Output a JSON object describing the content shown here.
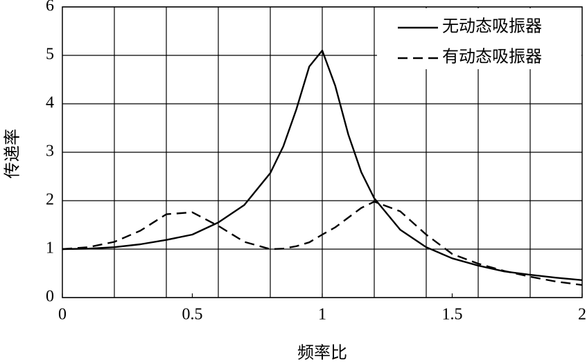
{
  "chart_data": {
    "type": "line",
    "xlabel": "频率比",
    "ylabel": "传递率",
    "x": [
      0,
      0.1,
      0.2,
      0.3,
      0.4,
      0.5,
      0.6,
      0.7,
      0.8,
      0.85,
      0.9,
      0.95,
      1.0,
      1.05,
      1.1,
      1.15,
      1.2,
      1.3,
      1.4,
      1.5,
      1.6,
      1.7,
      1.8,
      1.9,
      2.0
    ],
    "series": [
      {
        "name": "无动态吸振器",
        "color": "#000000",
        "dash": false,
        "values": [
          1.0,
          1.01,
          1.04,
          1.1,
          1.19,
          1.3,
          1.55,
          1.91,
          2.57,
          3.12,
          3.88,
          4.77,
          5.1,
          4.37,
          3.37,
          2.59,
          2.05,
          1.4,
          1.04,
          0.81,
          0.66,
          0.54,
          0.47,
          0.41,
          0.36
        ]
      },
      {
        "name": "有动态吸振器",
        "color": "#000000",
        "dash": true,
        "values": [
          1.0,
          1.04,
          1.15,
          1.38,
          1.72,
          1.76,
          1.48,
          1.15,
          1.0,
          1.01,
          1.06,
          1.14,
          1.3,
          1.45,
          1.65,
          1.85,
          1.98,
          1.78,
          1.3,
          0.9,
          0.7,
          0.55,
          0.43,
          0.33,
          0.26
        ]
      }
    ],
    "xlim": [
      0,
      2
    ],
    "ylim": [
      0,
      6
    ],
    "xticks": [
      0,
      0.5,
      1,
      1.5,
      2
    ],
    "yticks": [
      0,
      1,
      2,
      3,
      4,
      5,
      6
    ],
    "xgrid": [
      0.2,
      0.4,
      0.6,
      0.8,
      1.0,
      1.2,
      1.4,
      1.6,
      1.8
    ],
    "grid": true,
    "legend": "upper right"
  }
}
